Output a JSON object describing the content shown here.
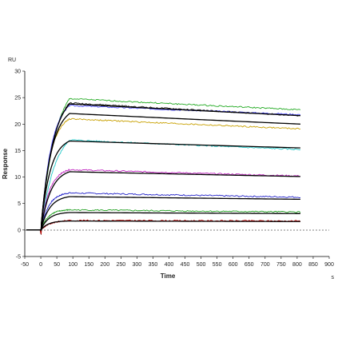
{
  "chart_data": {
    "type": "line",
    "title": "",
    "xlabel": "Time",
    "ylabel": "Response",
    "x_unit": "s",
    "y_unit": "RU",
    "xlim": [
      -50,
      900
    ],
    "ylim": [
      -5,
      30
    ],
    "x_ticks": [
      -50,
      0,
      50,
      100,
      150,
      200,
      250,
      300,
      350,
      400,
      450,
      500,
      550,
      600,
      650,
      700,
      750,
      800,
      850,
      900
    ],
    "y_ticks": [
      -5,
      0,
      5,
      10,
      15,
      20,
      25,
      30
    ],
    "x_tick_labels": [
      "-50",
      "0",
      "50",
      "100",
      "150",
      "200",
      "250",
      "300",
      "350",
      "400",
      "450",
      "500",
      "550",
      "600",
      "650",
      "700",
      "750",
      "800",
      "850",
      "900"
    ],
    "y_tick_labels": [
      "-5",
      "0",
      "5",
      "10",
      "15",
      "20",
      "25",
      "30"
    ],
    "grid": false,
    "legend": "none",
    "injection_start": 0,
    "injection_end": 90,
    "data_end": 810,
    "series": [
      {
        "kind": "observed",
        "color": "#22aa22",
        "values": [
          [
            0,
            0
          ],
          [
            90,
            24.8
          ],
          [
            810,
            22.7
          ]
        ]
      },
      {
        "kind": "observed",
        "color": "#1a1a1a",
        "values": [
          [
            0,
            0
          ],
          [
            90,
            24.0
          ],
          [
            810,
            21.6
          ]
        ]
      },
      {
        "kind": "observed",
        "color": "#5050ff",
        "values": [
          [
            0,
            0
          ],
          [
            90,
            23.5
          ],
          [
            810,
            21.8
          ]
        ]
      },
      {
        "kind": "observed",
        "color": "#c8a000",
        "values": [
          [
            0,
            0
          ],
          [
            90,
            21.0
          ],
          [
            810,
            19.1
          ]
        ]
      },
      {
        "kind": "observed",
        "color": "#20c8c8",
        "values": [
          [
            0,
            0
          ],
          [
            90,
            17.0
          ],
          [
            810,
            15.2
          ]
        ]
      },
      {
        "kind": "observed",
        "color": "#c020c0",
        "values": [
          [
            0,
            0
          ],
          [
            90,
            11.4
          ],
          [
            810,
            10.2
          ]
        ]
      },
      {
        "kind": "observed",
        "color": "#2020c8",
        "values": [
          [
            0,
            0
          ],
          [
            90,
            7.0
          ],
          [
            810,
            6.2
          ]
        ]
      },
      {
        "kind": "observed",
        "color": "#20a020",
        "values": [
          [
            0,
            0
          ],
          [
            90,
            3.8
          ],
          [
            810,
            3.4
          ]
        ]
      },
      {
        "kind": "observed",
        "color": "#c00000",
        "values": [
          [
            0,
            0
          ],
          [
            90,
            1.8
          ],
          [
            810,
            1.7
          ]
        ]
      },
      {
        "kind": "fit",
        "color": "#000000",
        "values": [
          [
            0,
            0
          ],
          [
            90,
            23.8
          ],
          [
            810,
            21.6
          ]
        ]
      },
      {
        "kind": "fit",
        "color": "#000000",
        "values": [
          [
            0,
            0
          ],
          [
            90,
            22.0
          ],
          [
            810,
            20.0
          ]
        ]
      },
      {
        "kind": "fit",
        "color": "#000000",
        "values": [
          [
            0,
            0
          ],
          [
            90,
            16.8
          ],
          [
            810,
            15.5
          ]
        ]
      },
      {
        "kind": "fit",
        "color": "#000000",
        "values": [
          [
            0,
            0
          ],
          [
            90,
            11.0
          ],
          [
            810,
            10.1
          ]
        ]
      },
      {
        "kind": "fit",
        "color": "#000000",
        "values": [
          [
            0,
            0
          ],
          [
            90,
            6.3
          ],
          [
            810,
            5.8
          ]
        ]
      },
      {
        "kind": "fit",
        "color": "#000000",
        "values": [
          [
            0,
            0
          ],
          [
            90,
            3.3
          ],
          [
            810,
            3.1
          ]
        ]
      },
      {
        "kind": "fit",
        "color": "#000000",
        "values": [
          [
            0,
            0
          ],
          [
            90,
            1.7
          ],
          [
            810,
            1.6
          ]
        ]
      }
    ]
  }
}
